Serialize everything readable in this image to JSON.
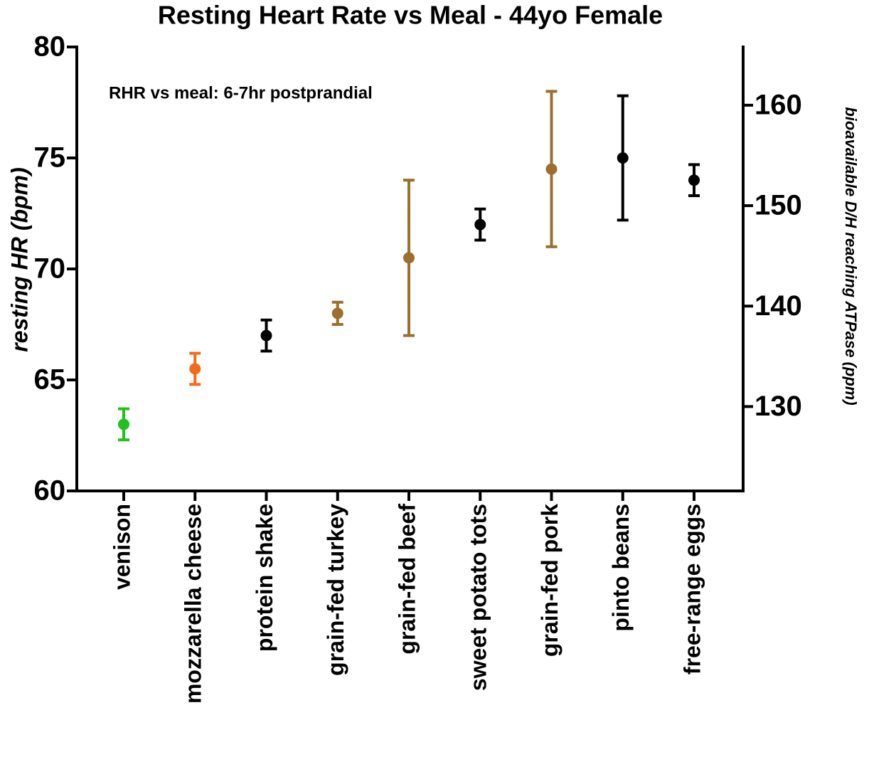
{
  "chart_data": {
    "type": "errorbar",
    "title": "Resting Heart Rate vs Meal - 44yo Female",
    "annotation": "RHR vs meal: 6-7hr postprandial",
    "ylabel": "resting HR (bpm)",
    "y2label": "bioavailable D/H reaching ATPase (ppm)",
    "categories": [
      "venison",
      "mozzarella cheese",
      "protein shake",
      "grain-fed turkey",
      "grain-fed beef",
      "sweet potato tots",
      "grain-fed pork",
      "pinto beans",
      "free-range eggs"
    ],
    "series": [
      {
        "values": [
          63,
          65.5,
          67,
          68,
          70.5,
          72,
          74.5,
          75,
          74
        ],
        "errors": [
          0.7,
          0.7,
          0.7,
          0.5,
          3.5,
          0.7,
          3.5,
          2.8,
          0.7
        ],
        "colors": [
          "#22c01e",
          "#f26b1d",
          "#000000",
          "#9b6f2e",
          "#9b6f2e",
          "#000000",
          "#9b6f2e",
          "#000000",
          "#000000"
        ]
      }
    ],
    "ylim": [
      60,
      80
    ],
    "yticks": [
      60,
      65,
      70,
      75,
      80
    ],
    "y2lim": [
      121.6,
      165.8
    ],
    "y2ticks": [
      130,
      140,
      150,
      160
    ]
  }
}
